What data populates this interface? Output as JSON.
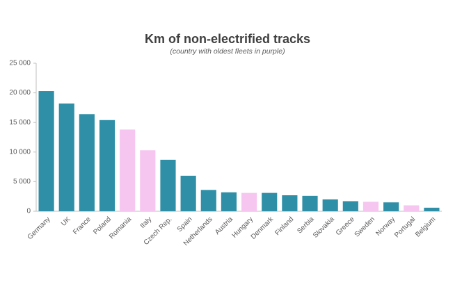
{
  "chart_data": {
    "type": "bar",
    "title": "Km of non-electrified tracks",
    "subtitle": "(country with oldest fleets in purple)",
    "categories": [
      "Germany",
      "UK",
      "France",
      "Poland",
      "Romania",
      "Italy",
      "Czech Rep.",
      "Spain",
      "Netherlands",
      "Austria",
      "Hungary",
      "Denmark",
      "Finland",
      "Serbia",
      "Slovakia",
      "Greece",
      "Sweden",
      "Norway",
      "Portugal",
      "Belgium"
    ],
    "values": [
      20300,
      18200,
      16400,
      15400,
      13800,
      10300,
      8700,
      6000,
      3600,
      3200,
      3100,
      3100,
      2700,
      2600,
      2000,
      1700,
      1600,
      1500,
      1000,
      600
    ],
    "colors": [
      "#2e8fa7",
      "#2e8fa7",
      "#2e8fa7",
      "#2e8fa7",
      "#f6c6f0",
      "#f6c6f0",
      "#2e8fa7",
      "#2e8fa7",
      "#2e8fa7",
      "#2e8fa7",
      "#f6c6f0",
      "#2e8fa7",
      "#2e8fa7",
      "#2e8fa7",
      "#2e8fa7",
      "#2e8fa7",
      "#f6c6f0",
      "#2e8fa7",
      "#f6c6f0",
      "#2e8fa7"
    ],
    "ylim": [
      0,
      25000
    ],
    "yticks": [
      0,
      {
        "value": 5000,
        "label": "5 000"
      },
      {
        "value": 10000,
        "label": "10 000"
      },
      {
        "value": 15000,
        "label": "15 000"
      },
      {
        "value": 20000,
        "label": "20 000"
      },
      {
        "value": 25000,
        "label": "25 000"
      }
    ],
    "grid": false
  }
}
